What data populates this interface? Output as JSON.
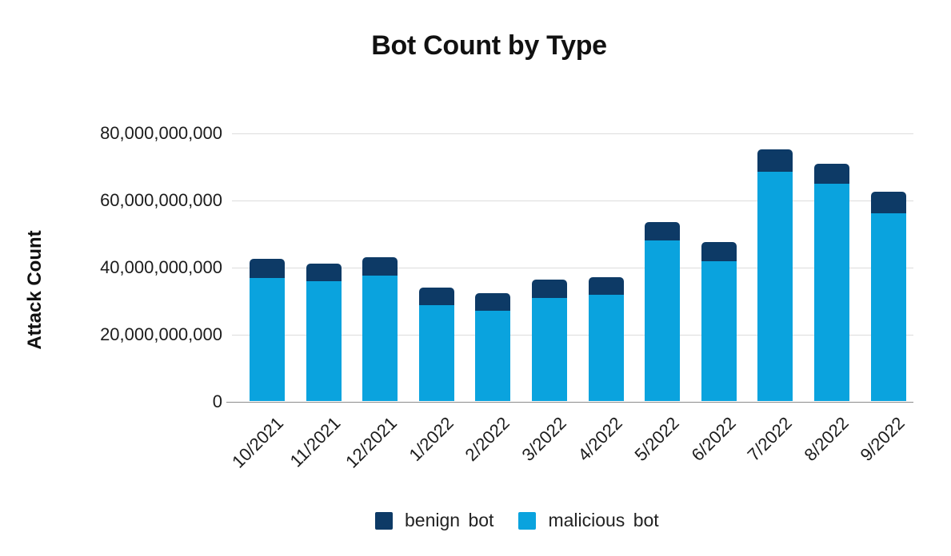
{
  "chart_data": {
    "type": "bar",
    "stacked": true,
    "title": "Bot Count by Type",
    "ylabel": "Attack Count",
    "xlabel": "",
    "categories": [
      "10/2021",
      "11/2021",
      "12/2021",
      "1/2022",
      "2/2022",
      "3/2022",
      "4/2022",
      "5/2022",
      "6/2022",
      "7/2022",
      "8/2022",
      "9/2022"
    ],
    "series": [
      {
        "name": "malicious bot",
        "color": "#0aa3de",
        "values": [
          36600000000,
          35800000000,
          37400000000,
          28600000000,
          26900000000,
          30600000000,
          31600000000,
          47800000000,
          41600000000,
          68400000000,
          64800000000,
          55900000000
        ]
      },
      {
        "name": "benign bot",
        "color": "#0d3a66",
        "values": [
          5800000000,
          5200000000,
          5400000000,
          5200000000,
          5200000000,
          5700000000,
          5200000000,
          5500000000,
          5700000000,
          6700000000,
          6000000000,
          6500000000
        ]
      }
    ],
    "ylim": [
      0,
      80000000000
    ],
    "y_ticks": [
      {
        "value": 0,
        "label": "0"
      },
      {
        "value": 20000000000,
        "label": "20,000,000,000"
      },
      {
        "value": 40000000000,
        "label": "40,000,000,000"
      },
      {
        "value": 60000000000,
        "label": "60,000,000,000"
      },
      {
        "value": 80000000000,
        "label": "80,000,000,000"
      }
    ],
    "grid": "horizontal",
    "legend_position": "bottom",
    "legend": [
      {
        "label": "benign bot",
        "color": "#0d3a66"
      },
      {
        "label": "malicious bot",
        "color": "#0aa3de"
      }
    ],
    "axis_colors": {
      "baseline": "#8c8c8c",
      "gridline": "#dcdcdc",
      "text": "#1a1a1a"
    }
  }
}
